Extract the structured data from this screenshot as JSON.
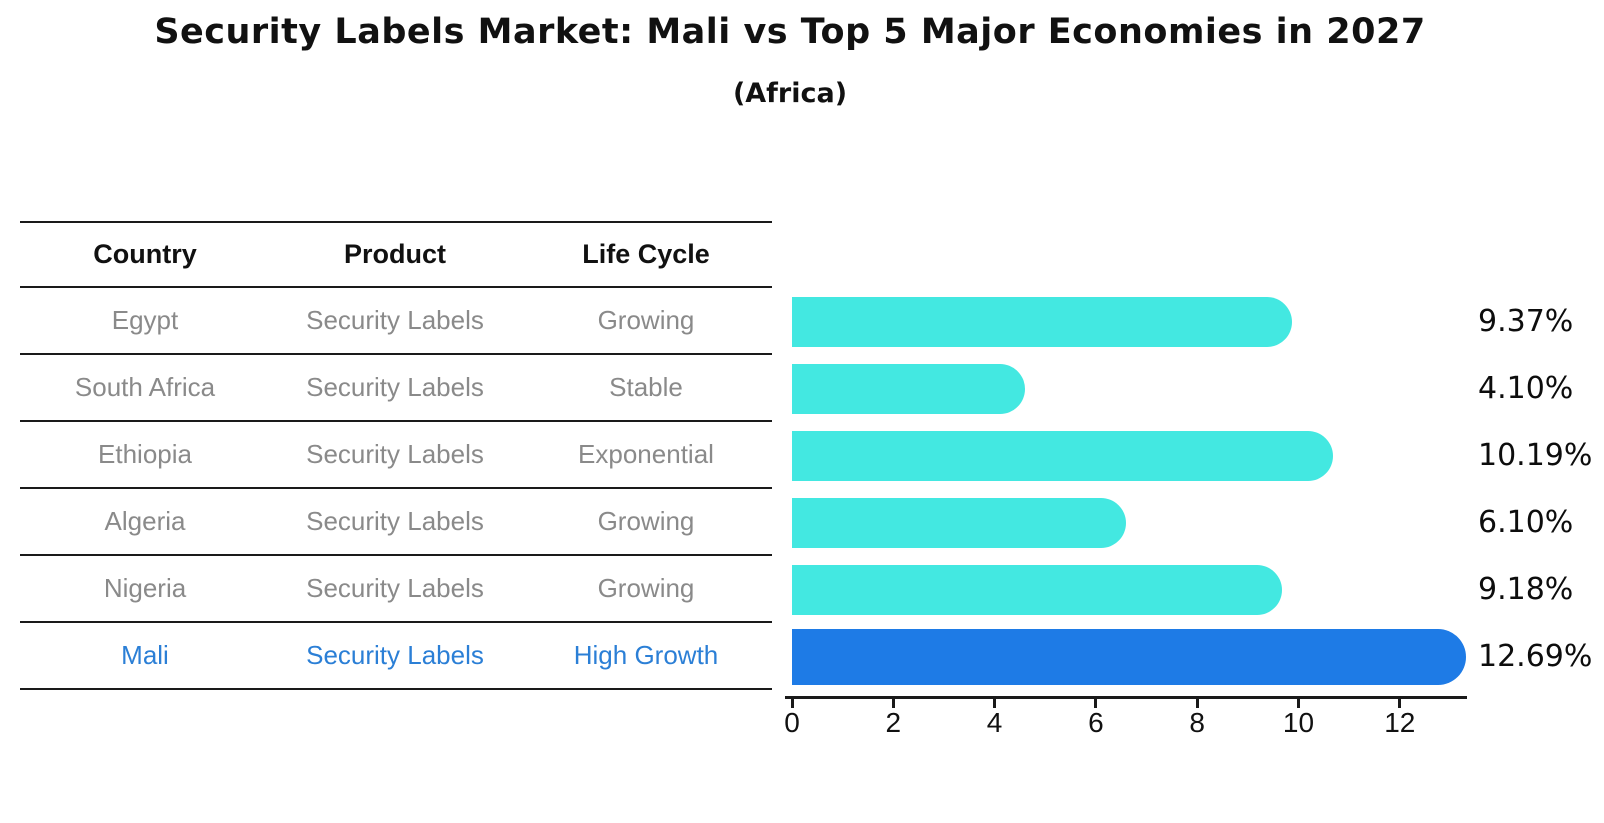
{
  "page": {
    "title": "Security Labels Market: Mali vs Top 5 Major Economies in 2027",
    "subtitle": "(Africa)"
  },
  "table": {
    "headers": {
      "country": "Country",
      "product": "Product",
      "life_cycle": "Life Cycle"
    },
    "rows": [
      {
        "country": "Egypt",
        "product": "Security Labels",
        "life_cycle": "Growing"
      },
      {
        "country": "South Africa",
        "product": "Security Labels",
        "life_cycle": "Stable"
      },
      {
        "country": "Ethiopia",
        "product": "Security Labels",
        "life_cycle": "Exponential"
      },
      {
        "country": "Algeria",
        "product": "Security Labels",
        "life_cycle": "Growing"
      },
      {
        "country": "Nigeria",
        "product": "Security Labels",
        "life_cycle": "Growing"
      },
      {
        "country": "Mali",
        "product": "Security Labels",
        "life_cycle": "High Growth"
      }
    ],
    "highlighted_country": "Mali"
  },
  "chart_data": {
    "type": "bar",
    "orientation": "horizontal",
    "title": "Security Labels Market: Mali vs Top 5 Major Economies in 2027",
    "subtitle": "(Africa)",
    "categories": [
      "Egypt",
      "South Africa",
      "Ethiopia",
      "Algeria",
      "Nigeria",
      "Mali"
    ],
    "values": [
      9.37,
      4.1,
      10.19,
      6.1,
      9.18,
      12.69
    ],
    "value_labels": [
      "9.37%",
      "4.10%",
      "10.19%",
      "6.10%",
      "9.18%",
      "12.69%"
    ],
    "xticks": [
      0,
      2,
      4,
      6,
      8,
      10,
      12
    ],
    "xlim": [
      0,
      13.3
    ],
    "xlabel": "",
    "ylabel": "",
    "grid": false,
    "legend_position": "none",
    "bar_color": "#43e8e1",
    "highlight_color": "#1e7be6",
    "highlight_border_color": "#1e7be6",
    "highlight_index": 5
  },
  "colors": {
    "background": "#ffffff",
    "text_primary": "#111111",
    "text_muted": "#8a8a8a",
    "highlight_text": "#2b7fd6",
    "line": "#1a1a1a"
  }
}
